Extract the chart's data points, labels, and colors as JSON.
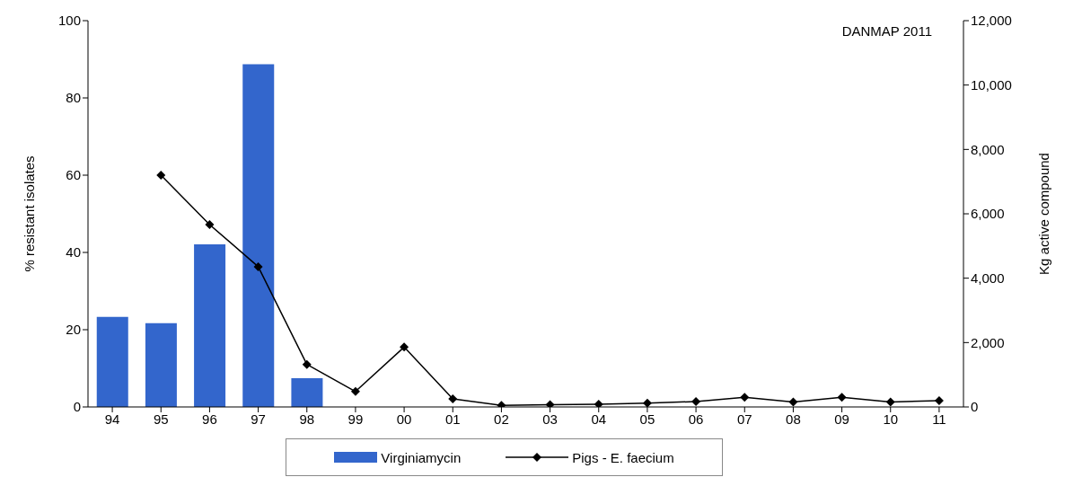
{
  "chart_data": {
    "type": "bar",
    "ylabel": "% resistant isolates",
    "y2label": "Kg active compound",
    "annotations": [
      "DANMAP 2011"
    ],
    "categories": [
      "94",
      "95",
      "96",
      "97",
      "98",
      "99",
      "00",
      "01",
      "02",
      "03",
      "04",
      "05",
      "06",
      "07",
      "08",
      "09",
      "10",
      "11"
    ],
    "series": [
      {
        "name": "Virginiamycin",
        "axis": "y2",
        "color": "#3366cc",
        "values": [
          2800,
          2600,
          5050,
          10650,
          890,
          null,
          null,
          null,
          null,
          null,
          null,
          null,
          null,
          null,
          null,
          null,
          null,
          null
        ]
      },
      {
        "name": "Pigs - E. faecium",
        "type": "line",
        "axis": "y",
        "color": "#000000",
        "marker": "diamond",
        "values": [
          null,
          60,
          47.2,
          36.3,
          11,
          4,
          15.5,
          2.1,
          0.4,
          0.6,
          0.7,
          1,
          1.4,
          2.5,
          1.3,
          2.5,
          1.3,
          1.6
        ]
      }
    ],
    "ylim": [
      0,
      100
    ],
    "yticks": [
      0,
      20,
      40,
      60,
      80,
      100
    ],
    "y2lim": [
      0,
      12000
    ],
    "y2ticks": [
      {
        "value": 0,
        "label": "0"
      },
      {
        "value": 2000,
        "label": "2,000"
      },
      {
        "value": 4000,
        "label": "4,000"
      },
      {
        "value": 6000,
        "label": "6,000"
      },
      {
        "value": 8000,
        "label": "8,000"
      },
      {
        "value": 10000,
        "label": "10,000"
      },
      {
        "value": 12000,
        "label": "12,000"
      }
    ],
    "grid": false,
    "legend": "bottom",
    "line_style": "solid"
  }
}
